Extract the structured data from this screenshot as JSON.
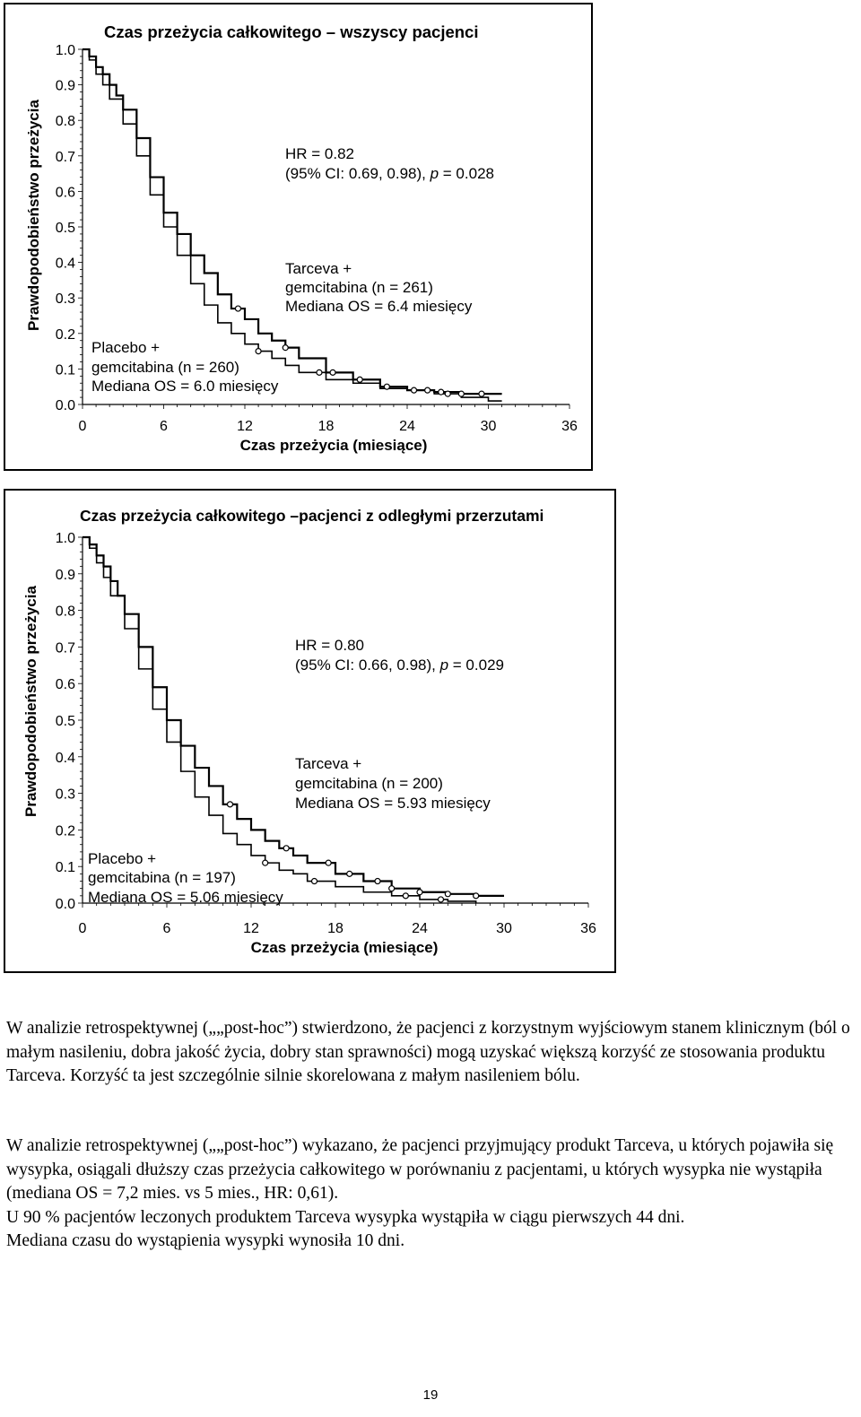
{
  "charts_meta": [
    {
      "vertical_label": "Prawdopodobieństwo przeżycia",
      "x_label": "Czas przeżycia (miesiące)",
      "stats": {
        "line1": "HR = 0.82",
        "line2_prefix": "(95% CI: 0.69, 0.98), ",
        "line2_p": "p",
        "line2_suffix": " = 0.028"
      },
      "tarceva": {
        "line1": "Tarceva +",
        "line2": "gemcitabina (n = 261)",
        "line3": "Mediana OS = 6.4 miesięcy"
      },
      "placebo": {
        "line1": "Placebo +",
        "line2": "gemcitabina (n = 260)",
        "line3": "Mediana OS = 6.0 miesięcy"
      }
    },
    {
      "vertical_label": "Prawdopodobieństwo przeżycia",
      "x_label": "Czas przeżycia (miesiące)",
      "stats": {
        "line1": "HR = 0.80",
        "line2_prefix": "(95% CI: 0.66, 0.98), ",
        "line2_p": "p",
        "line2_suffix": " = 0.029"
      },
      "tarceva": {
        "line1": "Tarceva +",
        "line2": "gemcitabina (n = 200)",
        "line3": "Mediana OS = 5.93 miesięcy"
      },
      "placebo": {
        "line1": "Placebo +",
        "line2": "gemcitabina (n = 197)",
        "line3": "Mediana OS = 5.06 miesięcy"
      }
    }
  ],
  "chart_data": [
    {
      "type": "line",
      "title": "Czas przeżycia całkowitego – wszyscy pacjenci",
      "xlabel": "Czas przeżycia (miesiące)",
      "ylabel": "Prawdopodobieństwo przeżycia",
      "xlim": [
        0,
        36
      ],
      "ylim": [
        0,
        1
      ],
      "xticks": [
        "0",
        "6",
        "12",
        "18",
        "24",
        "30",
        "36"
      ],
      "yticks": [
        "0.0",
        "0.1",
        "0.2",
        "0.3",
        "0.4",
        "0.5",
        "0.6",
        "0.7",
        "0.8",
        "0.9",
        "1.0"
      ],
      "series": [
        {
          "name": "Tarceva + gemcitabina (n = 261)",
          "x": [
            0,
            0.5,
            1,
            1.5,
            2,
            2.5,
            3,
            4,
            5,
            6,
            7,
            8,
            9,
            10,
            11,
            12,
            13,
            14,
            15,
            16,
            18,
            20,
            22,
            24,
            26,
            28,
            30,
            31
          ],
          "y": [
            1.0,
            0.98,
            0.95,
            0.93,
            0.9,
            0.87,
            0.83,
            0.75,
            0.64,
            0.54,
            0.48,
            0.42,
            0.37,
            0.31,
            0.27,
            0.24,
            0.2,
            0.18,
            0.16,
            0.13,
            0.09,
            0.07,
            0.05,
            0.04,
            0.035,
            0.03,
            0.03,
            0.03
          ]
        },
        {
          "name": "Placebo + gemcitabina (n = 260)",
          "x": [
            0,
            0.5,
            1,
            1.5,
            2,
            3,
            4,
            5,
            6,
            7,
            8,
            9,
            10,
            11,
            12,
            13,
            14,
            15,
            16,
            18,
            20,
            22,
            24,
            26,
            28,
            30,
            31
          ],
          "y": [
            1.0,
            0.97,
            0.93,
            0.9,
            0.86,
            0.79,
            0.7,
            0.59,
            0.5,
            0.42,
            0.34,
            0.28,
            0.23,
            0.2,
            0.17,
            0.15,
            0.13,
            0.11,
            0.09,
            0.07,
            0.06,
            0.045,
            0.04,
            0.03,
            0.02,
            0.01,
            0.01
          ]
        }
      ],
      "censor_marks": [
        {
          "series": 0,
          "x": [
            11.5,
            15,
            18.5,
            20.5,
            22.5,
            25.5,
            26.5,
            28,
            29.5
          ]
        },
        {
          "series": 1,
          "x": [
            13,
            17.5,
            24.5,
            27
          ]
        }
      ]
    },
    {
      "type": "line",
      "title": "Czas przeżycia całkowitego –pacjenci z odległymi przerzutami",
      "xlabel": "Czas przeżycia (miesiące)",
      "ylabel": "Prawdopodobieństwo przeżycia",
      "xlim": [
        0,
        36
      ],
      "ylim": [
        0,
        1
      ],
      "xticks": [
        "0",
        "6",
        "12",
        "18",
        "24",
        "30",
        "36"
      ],
      "yticks": [
        "0.0",
        "0.1",
        "0.2",
        "0.3",
        "0.4",
        "0.5",
        "0.6",
        "0.7",
        "0.8",
        "0.9",
        "1.0"
      ],
      "series": [
        {
          "name": "Tarceva + gemcitabina (n = 200)",
          "x": [
            0,
            0.5,
            1,
            1.5,
            2,
            2.5,
            3,
            4,
            5,
            6,
            7,
            8,
            9,
            10,
            11,
            12,
            13,
            14,
            15,
            16,
            18,
            20,
            22,
            24,
            26,
            28,
            30
          ],
          "y": [
            1.0,
            0.98,
            0.95,
            0.92,
            0.88,
            0.84,
            0.79,
            0.7,
            0.59,
            0.5,
            0.43,
            0.37,
            0.32,
            0.27,
            0.23,
            0.2,
            0.17,
            0.15,
            0.13,
            0.11,
            0.08,
            0.06,
            0.04,
            0.03,
            0.025,
            0.02,
            0.02
          ]
        },
        {
          "name": "Placebo + gemcitabina (n = 197)",
          "x": [
            0,
            0.5,
            1,
            1.5,
            2,
            3,
            4,
            5,
            6,
            7,
            8,
            9,
            10,
            11,
            12,
            13,
            14,
            15,
            16,
            18,
            20,
            22,
            24,
            26,
            28
          ],
          "y": [
            1.0,
            0.97,
            0.93,
            0.89,
            0.84,
            0.75,
            0.64,
            0.53,
            0.44,
            0.36,
            0.29,
            0.24,
            0.19,
            0.16,
            0.13,
            0.11,
            0.09,
            0.08,
            0.06,
            0.045,
            0.03,
            0.02,
            0.01,
            0.005,
            0.0
          ]
        }
      ],
      "censor_marks": [
        {
          "series": 0,
          "x": [
            10.5,
            14.5,
            17.5,
            19,
            21,
            22,
            24,
            26,
            28
          ]
        },
        {
          "series": 1,
          "x": [
            13,
            16.5,
            23,
            25.5
          ]
        }
      ]
    }
  ],
  "paragraph1": "W analizie retrospektywnej („„post-hoc”) stwierdzono, że pacjenci z korzystnym wyjściowym stanem klinicznym (ból o małym nasileniu, dobra jakość życia, dobry stan sprawności) mogą uzyskać większą korzyść ze stosowania produktu Tarceva. Korzyść ta jest szczególnie silnie skorelowana z małym nasileniem bólu.",
  "paragraph2": {
    "line1": "W analizie retrospektywnej („„post-hoc”) wykazano, że pacjenci przyjmujący produkt Tarceva, u których pojawiła się wysypka, osiągali dłuższy czas przeżycia całkowitego w porównaniu z pacjentami, u których wysypka nie wystąpiła (mediana OS = 7,2 mies. vs 5 mies., HR: 0,61).",
    "line2": "U 90 % pacjentów leczonych produktem Tarceva wysypka wystąpiła w ciągu pierwszych 44 dni.",
    "line3": "Mediana czasu do wystąpienia wysypki wynosiła 10 dni."
  },
  "page_number": "19"
}
